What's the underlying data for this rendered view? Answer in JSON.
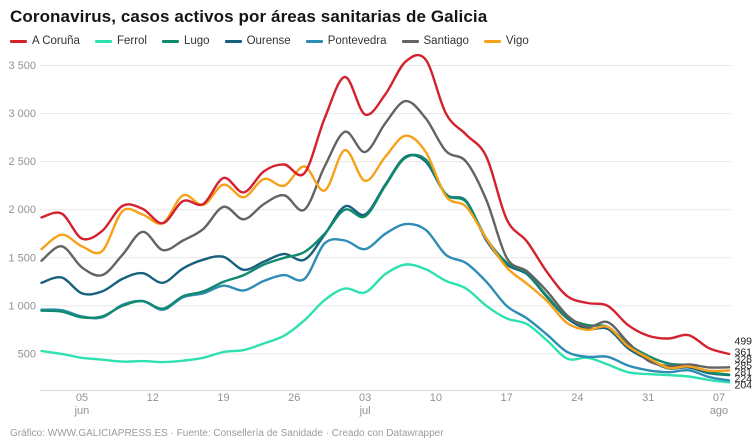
{
  "title": "Coronavirus, casos activos por áreas sanitarias de Galicia",
  "footer": "Gráfico: WWW.GALICIAPRESS.ES · Fuente: Consellería de Sanidade · Creado con Datawrapper",
  "colors": {
    "a_coruna": "#d3212d",
    "ferrol": "#2fe1b0",
    "lugo": "#0f8a6d",
    "ourense": "#17607f",
    "pontevedra": "#2e8cb5",
    "santiago": "#636363",
    "vigo": "#f7a11a",
    "grid": "#e7e7e7",
    "axis": "#d6d6d6",
    "tick_text": "#929292",
    "end_label_text": "#222222"
  },
  "chart_data": {
    "type": "line",
    "title": "Coronavirus, casos activos por áreas sanitarias de Galicia",
    "xlabel": "",
    "ylabel": "",
    "grid": "horizontal",
    "legend_position": "top",
    "ylim": [
      0,
      3600
    ],
    "x_unit": "days since 01 jun",
    "x_step_days": 2,
    "x_ticks": [
      {
        "day": 4,
        "label": "05",
        "month": "jun"
      },
      {
        "day": 11,
        "label": "12",
        "month": ""
      },
      {
        "day": 18,
        "label": "19",
        "month": ""
      },
      {
        "day": 25,
        "label": "26",
        "month": ""
      },
      {
        "day": 32,
        "label": "03",
        "month": "jul"
      },
      {
        "day": 39,
        "label": "10",
        "month": ""
      },
      {
        "day": 46,
        "label": "17",
        "month": ""
      },
      {
        "day": 53,
        "label": "24",
        "month": ""
      },
      {
        "day": 60,
        "label": "31",
        "month": ""
      },
      {
        "day": 67,
        "label": "07",
        "month": "ago"
      }
    ],
    "y_ticks": [
      {
        "value": 500,
        "label": "500"
      },
      {
        "value": 1000,
        "label": "1 000"
      },
      {
        "value": 1500,
        "label": "1 500"
      },
      {
        "value": 2000,
        "label": "2 000"
      },
      {
        "value": 2500,
        "label": "2 500"
      },
      {
        "value": 3000,
        "label": "3 000"
      },
      {
        "value": 3500,
        "label": "3 500"
      }
    ],
    "series": [
      {
        "name": "A Coruña",
        "color": "#d3212d",
        "end_label": "499",
        "values": [
          1920,
          1960,
          1700,
          1780,
          2040,
          2010,
          1860,
          2090,
          2060,
          2330,
          2180,
          2400,
          2470,
          2380,
          2950,
          3380,
          2990,
          3200,
          3540,
          3560,
          3000,
          2780,
          2550,
          1900,
          1670,
          1350,
          1100,
          1030,
          1000,
          800,
          690,
          660,
          695,
          560,
          499
        ]
      },
      {
        "name": "Ferrol",
        "color": "#2fe1b0",
        "end_label": "204",
        "values": [
          530,
          500,
          460,
          440,
          420,
          425,
          415,
          430,
          460,
          520,
          540,
          610,
          690,
          850,
          1060,
          1180,
          1140,
          1330,
          1430,
          1380,
          1260,
          1180,
          1000,
          870,
          810,
          640,
          450,
          460,
          390,
          310,
          290,
          280,
          265,
          230,
          204
        ]
      },
      {
        "name": "Lugo",
        "color": "#0f8a6d",
        "end_label": "285",
        "values": [
          950,
          940,
          880,
          890,
          1000,
          1050,
          970,
          1100,
          1150,
          1250,
          1320,
          1430,
          1500,
          1560,
          1750,
          2000,
          1930,
          2250,
          2540,
          2520,
          2160,
          2080,
          1700,
          1450,
          1340,
          1100,
          880,
          800,
          780,
          600,
          480,
          400,
          380,
          310,
          285
        ]
      },
      {
        "name": "Ourense",
        "color": "#17607f",
        "end_label": "281",
        "values": [
          1240,
          1295,
          1130,
          1150,
          1280,
          1340,
          1240,
          1390,
          1480,
          1510,
          1375,
          1460,
          1540,
          1480,
          1740,
          2035,
          1950,
          2260,
          2550,
          2500,
          2160,
          2090,
          1680,
          1430,
          1330,
          1090,
          870,
          760,
          760,
          560,
          440,
          350,
          360,
          300,
          281
        ]
      },
      {
        "name": "Pontevedra",
        "color": "#2e8cb5",
        "end_label": "224",
        "values": [
          960,
          955,
          890,
          880,
          1010,
          1050,
          960,
          1090,
          1130,
          1210,
          1160,
          1260,
          1320,
          1280,
          1650,
          1680,
          1590,
          1750,
          1850,
          1790,
          1530,
          1445,
          1250,
          1000,
          870,
          700,
          520,
          470,
          470,
          380,
          330,
          310,
          330,
          260,
          224
        ]
      },
      {
        "name": "Santiago",
        "color": "#636363",
        "end_label": "361",
        "values": [
          1470,
          1620,
          1400,
          1320,
          1530,
          1770,
          1580,
          1680,
          1800,
          2030,
          1900,
          2060,
          2150,
          2000,
          2450,
          2810,
          2600,
          2900,
          3130,
          2950,
          2610,
          2500,
          2100,
          1500,
          1360,
          1150,
          900,
          780,
          830,
          620,
          430,
          375,
          390,
          360,
          361
        ]
      },
      {
        "name": "Vigo",
        "color": "#f7a11a",
        "end_label": "328",
        "values": [
          1590,
          1740,
          1620,
          1570,
          1985,
          1950,
          1860,
          2150,
          2050,
          2260,
          2130,
          2320,
          2250,
          2450,
          2200,
          2620,
          2300,
          2550,
          2770,
          2600,
          2140,
          2030,
          1700,
          1400,
          1230,
          1050,
          820,
          750,
          780,
          580,
          460,
          355,
          370,
          325,
          328
        ]
      }
    ]
  }
}
